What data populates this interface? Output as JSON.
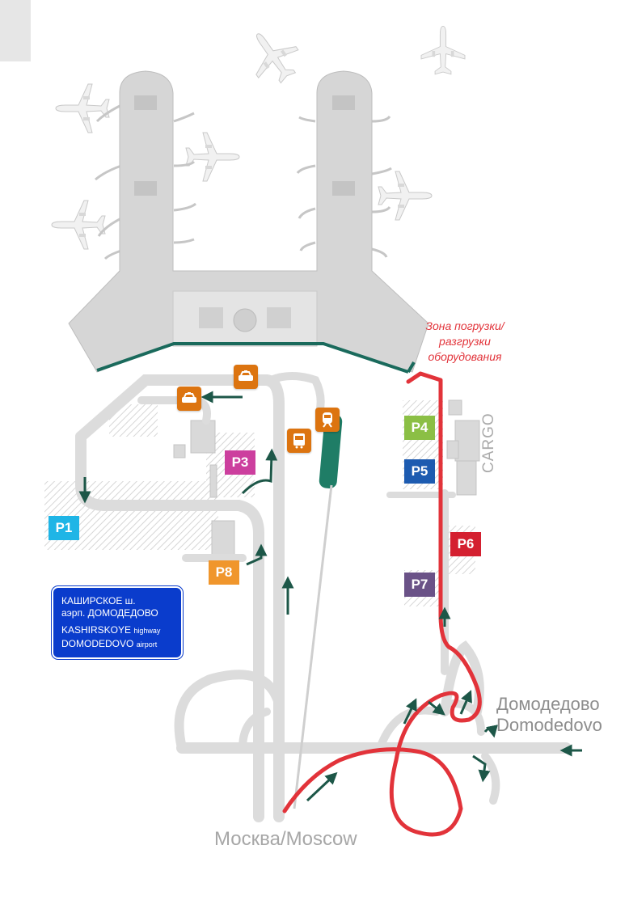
{
  "map": {
    "loading_zone": {
      "line1": "Зона погрузки/",
      "line2": "разгрузки",
      "line3": "оборудования"
    },
    "cargo_label": "CARGO",
    "destination": {
      "ru": "Домодедово",
      "en": "Domodedovo"
    },
    "origin": {
      "label": "Москва/Moscow"
    },
    "highway_sign": {
      "ru_line1": "КАШИРСКОЕ ш.",
      "ru_line2": "аэрп. ДОМОДЕДОВО",
      "en_line1_main": "KASHIRSKOYE",
      "en_line1_small": "highway",
      "en_line2_main": "DOMODEDOVO",
      "en_line2_small": "airport"
    },
    "parkings": [
      {
        "label": "P1",
        "color": "#1fb5e6"
      },
      {
        "label": "P3",
        "color": "#cc3f9e"
      },
      {
        "label": "P4",
        "color": "#8bbf45"
      },
      {
        "label": "P5",
        "color": "#1d5bb0"
      },
      {
        "label": "P6",
        "color": "#d42030"
      },
      {
        "label": "P7",
        "color": "#6a5287"
      },
      {
        "label": "P8",
        "color": "#f0962c"
      }
    ],
    "icons": [
      "taxi-icon",
      "taxi-icon",
      "bus-icon",
      "train-icon"
    ],
    "colors": {
      "route": "#e2333a",
      "arrow": "#1d5748",
      "road": "#dedede",
      "terminal": "#d3d3d3",
      "aeroexpress": "#1f7d66",
      "service_badge": "#dc7410"
    }
  }
}
